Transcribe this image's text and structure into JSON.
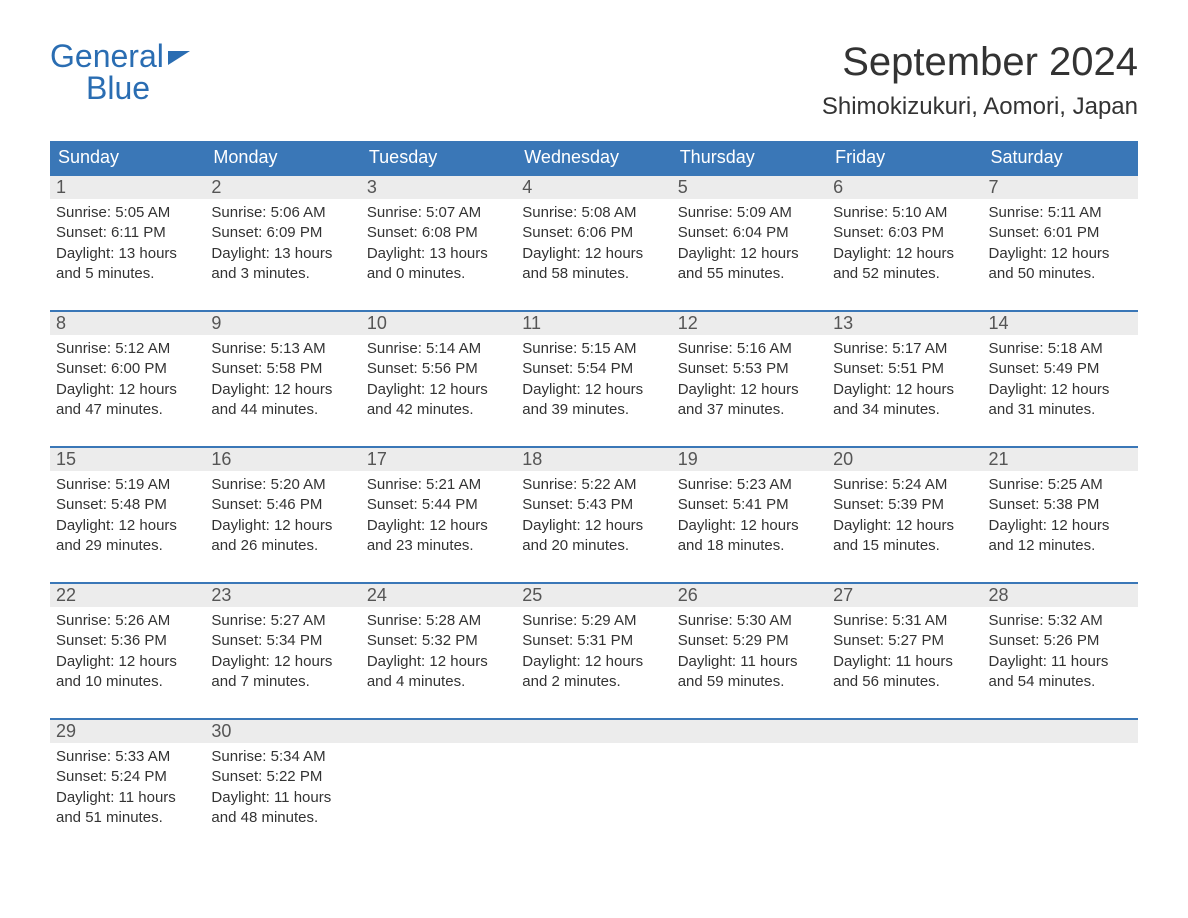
{
  "logo": {
    "line1": "General",
    "line2": "Blue",
    "brand_color": "#2a6db2"
  },
  "header": {
    "title": "September 2024",
    "location": "Shimokizukuri, Aomori, Japan"
  },
  "colors": {
    "header_bg": "#3a77b7",
    "header_text": "#ffffff",
    "daynum_bg": "#ececec",
    "daynum_text": "#555555",
    "body_text": "#333333",
    "week_border": "#3a77b7",
    "page_bg": "#ffffff"
  },
  "typography": {
    "title_fontsize": 40,
    "location_fontsize": 24,
    "weekday_fontsize": 18,
    "body_fontsize": 15
  },
  "weekdays": [
    "Sunday",
    "Monday",
    "Tuesday",
    "Wednesday",
    "Thursday",
    "Friday",
    "Saturday"
  ],
  "days": [
    {
      "n": "1",
      "sunrise": "5:05 AM",
      "sunset": "6:11 PM",
      "daylight": "13 hours and 5 minutes."
    },
    {
      "n": "2",
      "sunrise": "5:06 AM",
      "sunset": "6:09 PM",
      "daylight": "13 hours and 3 minutes."
    },
    {
      "n": "3",
      "sunrise": "5:07 AM",
      "sunset": "6:08 PM",
      "daylight": "13 hours and 0 minutes."
    },
    {
      "n": "4",
      "sunrise": "5:08 AM",
      "sunset": "6:06 PM",
      "daylight": "12 hours and 58 minutes."
    },
    {
      "n": "5",
      "sunrise": "5:09 AM",
      "sunset": "6:04 PM",
      "daylight": "12 hours and 55 minutes."
    },
    {
      "n": "6",
      "sunrise": "5:10 AM",
      "sunset": "6:03 PM",
      "daylight": "12 hours and 52 minutes."
    },
    {
      "n": "7",
      "sunrise": "5:11 AM",
      "sunset": "6:01 PM",
      "daylight": "12 hours and 50 minutes."
    },
    {
      "n": "8",
      "sunrise": "5:12 AM",
      "sunset": "6:00 PM",
      "daylight": "12 hours and 47 minutes."
    },
    {
      "n": "9",
      "sunrise": "5:13 AM",
      "sunset": "5:58 PM",
      "daylight": "12 hours and 44 minutes."
    },
    {
      "n": "10",
      "sunrise": "5:14 AM",
      "sunset": "5:56 PM",
      "daylight": "12 hours and 42 minutes."
    },
    {
      "n": "11",
      "sunrise": "5:15 AM",
      "sunset": "5:54 PM",
      "daylight": "12 hours and 39 minutes."
    },
    {
      "n": "12",
      "sunrise": "5:16 AM",
      "sunset": "5:53 PM",
      "daylight": "12 hours and 37 minutes."
    },
    {
      "n": "13",
      "sunrise": "5:17 AM",
      "sunset": "5:51 PM",
      "daylight": "12 hours and 34 minutes."
    },
    {
      "n": "14",
      "sunrise": "5:18 AM",
      "sunset": "5:49 PM",
      "daylight": "12 hours and 31 minutes."
    },
    {
      "n": "15",
      "sunrise": "5:19 AM",
      "sunset": "5:48 PM",
      "daylight": "12 hours and 29 minutes."
    },
    {
      "n": "16",
      "sunrise": "5:20 AM",
      "sunset": "5:46 PM",
      "daylight": "12 hours and 26 minutes."
    },
    {
      "n": "17",
      "sunrise": "5:21 AM",
      "sunset": "5:44 PM",
      "daylight": "12 hours and 23 minutes."
    },
    {
      "n": "18",
      "sunrise": "5:22 AM",
      "sunset": "5:43 PM",
      "daylight": "12 hours and 20 minutes."
    },
    {
      "n": "19",
      "sunrise": "5:23 AM",
      "sunset": "5:41 PM",
      "daylight": "12 hours and 18 minutes."
    },
    {
      "n": "20",
      "sunrise": "5:24 AM",
      "sunset": "5:39 PM",
      "daylight": "12 hours and 15 minutes."
    },
    {
      "n": "21",
      "sunrise": "5:25 AM",
      "sunset": "5:38 PM",
      "daylight": "12 hours and 12 minutes."
    },
    {
      "n": "22",
      "sunrise": "5:26 AM",
      "sunset": "5:36 PM",
      "daylight": "12 hours and 10 minutes."
    },
    {
      "n": "23",
      "sunrise": "5:27 AM",
      "sunset": "5:34 PM",
      "daylight": "12 hours and 7 minutes."
    },
    {
      "n": "24",
      "sunrise": "5:28 AM",
      "sunset": "5:32 PM",
      "daylight": "12 hours and 4 minutes."
    },
    {
      "n": "25",
      "sunrise": "5:29 AM",
      "sunset": "5:31 PM",
      "daylight": "12 hours and 2 minutes."
    },
    {
      "n": "26",
      "sunrise": "5:30 AM",
      "sunset": "5:29 PM",
      "daylight": "11 hours and 59 minutes."
    },
    {
      "n": "27",
      "sunrise": "5:31 AM",
      "sunset": "5:27 PM",
      "daylight": "11 hours and 56 minutes."
    },
    {
      "n": "28",
      "sunrise": "5:32 AM",
      "sunset": "5:26 PM",
      "daylight": "11 hours and 54 minutes."
    },
    {
      "n": "29",
      "sunrise": "5:33 AM",
      "sunset": "5:24 PM",
      "daylight": "11 hours and 51 minutes."
    },
    {
      "n": "30",
      "sunrise": "5:34 AM",
      "sunset": "5:22 PM",
      "daylight": "11 hours and 48 minutes."
    }
  ],
  "labels": {
    "sunrise": "Sunrise: ",
    "sunset": "Sunset: ",
    "daylight": "Daylight: "
  },
  "grid": {
    "columns": 7,
    "rows": 5,
    "first_weekday_index": 0
  }
}
